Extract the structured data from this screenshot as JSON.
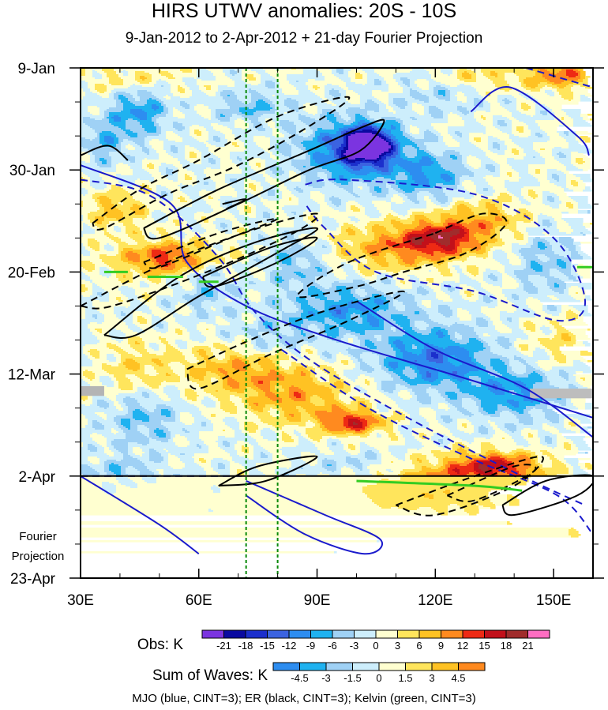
{
  "chart_data": {
    "type": "heatmap",
    "title": "HIRS UTWV anomalies: 20S - 10S",
    "subtitle": "9-Jan-2012 to 2-Apr-2012 + 21-day Fourier Projection",
    "x_axis": {
      "range": [
        30,
        160
      ],
      "ticks": [
        30,
        60,
        90,
        120,
        150
      ],
      "tick_labels": [
        "30E",
        "60E",
        "90E",
        "120E",
        "150E"
      ]
    },
    "y_axis": {
      "range_days": [
        0,
        105
      ],
      "ticks_days": [
        0,
        21,
        42,
        63,
        84,
        105
      ],
      "tick_labels": [
        "9-Jan",
        "30-Jan",
        "20-Feb",
        "12-Mar",
        "2-Apr",
        "23-Apr"
      ],
      "reversed": true
    },
    "forecast_boundary_day": 84,
    "forecast_label": "Fourier Projection",
    "forecast_label_lines": [
      "Fourier",
      "Projection"
    ],
    "reference_longitudes": [
      72,
      80
    ],
    "obs_colorbar": {
      "label": "Obs: K",
      "levels": [
        "-21",
        "-18",
        "-15",
        "-12",
        "-9",
        "-6",
        "-3",
        "0",
        "3",
        "6",
        "9",
        "12",
        "15",
        "18",
        "21"
      ],
      "colors": [
        "#7b34e0",
        "#0a0aa0",
        "#1b2fcc",
        "#3b63e0",
        "#2d8df0",
        "#1fb2f0",
        "#9fd1f5",
        "#cdeefc",
        "#ffffd0",
        "#ffe55c",
        "#ffc223",
        "#ff8a1f",
        "#ee2a14",
        "#c2101a",
        "#a02c2c",
        "#ff6dc2"
      ]
    },
    "waves_colorbar": {
      "label": "Sum of Waves: K",
      "levels": [
        "-4.5",
        "-3",
        "-1.5",
        "0",
        "1.5",
        "3",
        "4.5"
      ],
      "colors": [
        "#2d8df0",
        "#1fb2f0",
        "#9fd1f5",
        "#cdeefc",
        "#ffffd0",
        "#ffe55c",
        "#ffc223",
        "#ff8a1f"
      ]
    },
    "blobs": [
      {
        "lon": 103,
        "day": 16,
        "rx": 6,
        "ry": 3.5,
        "v": -21
      },
      {
        "lon": 99,
        "day": 17,
        "rx": 13,
        "ry": 6.5,
        "v": -13
      },
      {
        "lon": 118,
        "day": 22,
        "rx": 9,
        "ry": 4.5,
        "v": -9
      },
      {
        "lon": 45,
        "day": 9,
        "rx": 7,
        "ry": 5,
        "v": -9
      },
      {
        "lon": 73,
        "day": 8,
        "rx": 9,
        "ry": 3,
        "v": -6
      },
      {
        "lon": 36,
        "day": 15,
        "rx": 6,
        "ry": 5,
        "v": -6
      },
      {
        "lon": 84,
        "day": 40,
        "rx": 9,
        "ry": 5,
        "v": -6
      },
      {
        "lon": 98,
        "day": 50,
        "rx": 16,
        "ry": 5.5,
        "v": -9
      },
      {
        "lon": 120,
        "day": 60,
        "rx": 14,
        "ry": 6,
        "v": -12
      },
      {
        "lon": 140,
        "day": 67,
        "rx": 12,
        "ry": 5,
        "v": -9
      },
      {
        "lon": 62,
        "day": 44,
        "rx": 8,
        "ry": 6,
        "v": -6
      },
      {
        "lon": 46,
        "day": 72,
        "rx": 9,
        "ry": 6,
        "v": -6
      },
      {
        "lon": 148,
        "day": 40,
        "rx": 8,
        "ry": 7,
        "v": -5
      },
      {
        "lon": 78,
        "day": 56,
        "rx": 10,
        "ry": 4,
        "v": -4
      },
      {
        "lon": 122,
        "day": 5,
        "rx": 10,
        "ry": 4,
        "v": -4
      },
      {
        "lon": 40,
        "day": 84,
        "rx": 10,
        "ry": 4,
        "v": -5
      },
      {
        "lon": 100,
        "day": 82,
        "rx": 12,
        "ry": 3,
        "v": -4
      },
      {
        "lon": 122,
        "day": 35,
        "rx": 10,
        "ry": 3.5,
        "v": 14
      },
      {
        "lon": 110,
        "day": 37,
        "rx": 16,
        "ry": 5,
        "v": 9
      },
      {
        "lon": 133,
        "day": 31,
        "rx": 11,
        "ry": 4,
        "v": 7
      },
      {
        "lon": 52,
        "day": 39,
        "rx": 11,
        "ry": 3,
        "v": 9
      },
      {
        "lon": 55,
        "day": 40,
        "rx": 19,
        "ry": 5,
        "v": 5
      },
      {
        "lon": 85,
        "day": 68,
        "rx": 15,
        "ry": 5.5,
        "v": 8
      },
      {
        "lon": 99,
        "day": 73,
        "rx": 8,
        "ry": 2.5,
        "v": 14
      },
      {
        "lon": 70,
        "day": 62,
        "rx": 15,
        "ry": 5,
        "v": 8
      },
      {
        "lon": 39,
        "day": 29,
        "rx": 8,
        "ry": 4,
        "v": 7
      },
      {
        "lon": 44,
        "day": 62,
        "rx": 9,
        "ry": 6,
        "v": 5
      },
      {
        "lon": 152,
        "day": 1,
        "rx": 9,
        "ry": 3.5,
        "v": 11
      },
      {
        "lon": 130,
        "day": 2,
        "rx": 12,
        "ry": 3,
        "v": 5
      },
      {
        "lon": 43,
        "day": 2,
        "rx": 13,
        "ry": 3.5,
        "v": 4
      },
      {
        "lon": 135,
        "day": 82,
        "rx": 12,
        "ry": 3,
        "v": 14
      },
      {
        "lon": 120,
        "day": 86,
        "rx": 20,
        "ry": 5,
        "v": 8
      },
      {
        "lon": 116,
        "day": 88,
        "rx": 12,
        "ry": 3,
        "v": 10
      },
      {
        "lon": 152,
        "day": 56,
        "rx": 9,
        "ry": 5,
        "v": 4
      },
      {
        "lon": 138,
        "day": 92,
        "rx": 12,
        "ry": 6,
        "v": 3
      },
      {
        "lon": 155,
        "day": 96,
        "rx": 7,
        "ry": 6,
        "v": 4
      },
      {
        "lon": 45,
        "day": 96,
        "rx": 12,
        "ry": 5,
        "v": 2
      },
      {
        "lon": 62,
        "day": 88,
        "rx": 7,
        "ry": 3,
        "v": -2
      },
      {
        "lon": 96,
        "day": 96,
        "rx": 10,
        "ry": 6,
        "v": -1
      }
    ],
    "series": [
      {
        "name": "MJO positive",
        "color": "#1a1acc",
        "style": "solid",
        "points": [
          [
            129,
            9
          ],
          [
            139,
            4
          ],
          [
            156,
            14
          ],
          [
            159,
            18
          ]
        ]
      },
      {
        "name": "MJO positive",
        "color": "#1a1acc",
        "style": "solid",
        "points": [
          [
            30,
            20
          ],
          [
            53,
            28
          ],
          [
            57,
            40
          ],
          [
            72,
            49
          ],
          [
            95,
            56
          ],
          [
            128,
            64
          ],
          [
            160,
            72
          ]
        ]
      },
      {
        "name": "MJO positive",
        "color": "#1a1acc",
        "style": "solid",
        "points": [
          [
            100,
            48
          ],
          [
            120,
            58
          ],
          [
            143,
            66
          ],
          [
            160,
            76
          ]
        ]
      },
      {
        "name": "MJO positive",
        "color": "#1a1acc",
        "style": "solid",
        "points": [
          [
            72,
            85
          ],
          [
            92,
            92
          ],
          [
            106,
            97
          ],
          [
            102,
            100
          ],
          [
            87,
            96
          ],
          [
            72,
            88
          ]
        ]
      },
      {
        "name": "MJO positive",
        "color": "#1a1acc",
        "style": "solid",
        "points": [
          [
            30,
            84
          ],
          [
            50,
            94
          ],
          [
            60,
            100
          ]
        ]
      },
      {
        "name": "MJO negative",
        "color": "#1a1acc",
        "style": "dashed",
        "points": [
          [
            30,
            23
          ],
          [
            44,
            25
          ],
          [
            54,
            30
          ],
          [
            66,
            40
          ],
          [
            74,
            50
          ],
          [
            88,
            60
          ],
          [
            113,
            72
          ],
          [
            142,
            84
          ],
          [
            158,
            90
          ]
        ]
      },
      {
        "name": "MJO negative",
        "color": "#1a1acc",
        "style": "dashed",
        "points": [
          [
            87,
            24
          ],
          [
            97,
            23
          ],
          [
            130,
            26
          ],
          [
            150,
            35
          ],
          [
            158,
            48
          ],
          [
            151,
            52
          ],
          [
            130,
            46
          ],
          [
            105,
            42
          ],
          [
            92,
            33
          ],
          [
            87,
            28
          ]
        ]
      },
      {
        "name": "MJO negative",
        "color": "#1a1acc",
        "style": "dashed",
        "points": [
          [
            81,
            58
          ],
          [
            103,
            70
          ],
          [
            128,
            80
          ],
          [
            151,
            88
          ],
          [
            160,
            96
          ]
        ]
      },
      {
        "name": "MJO negative",
        "color": "#1a1acc",
        "style": "dashed",
        "points": [
          [
            30,
            84
          ],
          [
            72,
            84
          ]
        ]
      },
      {
        "name": "MJO negative",
        "color": "#1a1acc",
        "style": "dashed",
        "points": [
          [
            143,
            0
          ],
          [
            160,
            4
          ]
        ]
      },
      {
        "name": "ER positive",
        "color": "#000000",
        "style": "solid",
        "points": [
          [
            30,
            18
          ],
          [
            37,
            16
          ],
          [
            42,
            19
          ]
        ]
      },
      {
        "name": "ER positive",
        "color": "#000000",
        "style": "solid",
        "points": [
          [
            46,
            33
          ],
          [
            65,
            25
          ],
          [
            88,
            17
          ],
          [
            102,
            12
          ],
          [
            107,
            11
          ],
          [
            101,
            17
          ],
          [
            88,
            21
          ],
          [
            70,
            28
          ],
          [
            50,
            35
          ],
          [
            46,
            33
          ]
        ]
      },
      {
        "name": "ER positive",
        "color": "#000000",
        "style": "solid",
        "points": [
          [
            36,
            55
          ],
          [
            55,
            43
          ],
          [
            74,
            36
          ],
          [
            90,
            33
          ],
          [
            80,
            38
          ],
          [
            60,
            47
          ],
          [
            44,
            55
          ],
          [
            36,
            55
          ]
        ]
      },
      {
        "name": "ER positive",
        "color": "#000000",
        "style": "solid",
        "points": [
          [
            61,
            43
          ],
          [
            78,
            37
          ],
          [
            90,
            35
          ],
          [
            80,
            40
          ],
          [
            64,
            45
          ],
          [
            61,
            43
          ]
        ]
      },
      {
        "name": "ER positive",
        "color": "#000000",
        "style": "solid",
        "points": [
          [
            66,
            28
          ],
          [
            72,
            27
          ],
          [
            67,
            29
          ]
        ]
      },
      {
        "name": "ER positive",
        "color": "#000000",
        "style": "solid",
        "points": [
          [
            65,
            86
          ],
          [
            75,
            82
          ],
          [
            90,
            80
          ],
          [
            77,
            85
          ],
          [
            65,
            86
          ]
        ]
      },
      {
        "name": "ER positive",
        "color": "#000000",
        "style": "solid",
        "points": [
          [
            137,
            90
          ],
          [
            148,
            85
          ],
          [
            160,
            84
          ],
          [
            156,
            88
          ],
          [
            140,
            92
          ],
          [
            137,
            90
          ]
        ]
      },
      {
        "name": "ER negative",
        "color": "#000000",
        "style": "dashed",
        "points": [
          [
            33,
            32
          ],
          [
            45,
            25
          ],
          [
            60,
            19
          ],
          [
            80,
            10
          ],
          [
            98,
            6
          ],
          [
            88,
            12
          ],
          [
            70,
            20
          ],
          [
            52,
            26
          ],
          [
            36,
            33
          ],
          [
            33,
            32
          ]
        ]
      },
      {
        "name": "ER negative",
        "color": "#000000",
        "style": "dashed",
        "points": [
          [
            30,
            49
          ],
          [
            52,
            40
          ],
          [
            75,
            33
          ],
          [
            90,
            30
          ],
          [
            84,
            34
          ],
          [
            62,
            42
          ],
          [
            38,
            49
          ],
          [
            30,
            49
          ]
        ]
      },
      {
        "name": "ER negative",
        "color": "#000000",
        "style": "dashed",
        "points": [
          [
            46,
            40
          ],
          [
            65,
            34
          ],
          [
            80,
            31
          ],
          [
            68,
            35
          ],
          [
            50,
            41
          ],
          [
            46,
            40
          ]
        ]
      },
      {
        "name": "ER negative",
        "color": "#000000",
        "style": "dashed",
        "points": [
          [
            120,
            34
          ],
          [
            132,
            30
          ],
          [
            138,
            32
          ],
          [
            128,
            38
          ],
          [
            112,
            42
          ],
          [
            100,
            45
          ],
          [
            85,
            47
          ],
          [
            98,
            40
          ],
          [
            120,
            34
          ]
        ]
      },
      {
        "name": "ER negative",
        "color": "#000000",
        "style": "dashed",
        "points": [
          [
            57,
            62
          ],
          [
            73,
            56
          ],
          [
            92,
            50
          ],
          [
            112,
            46
          ],
          [
            98,
            52
          ],
          [
            78,
            59
          ],
          [
            60,
            66
          ],
          [
            57,
            62
          ]
        ]
      },
      {
        "name": "ER negative",
        "color": "#000000",
        "style": "dashed",
        "points": [
          [
            110,
            90
          ],
          [
            130,
            84
          ],
          [
            147,
            80
          ],
          [
            140,
            86
          ],
          [
            120,
            92
          ],
          [
            110,
            90
          ]
        ]
      },
      {
        "name": "ER negative",
        "color": "#000000",
        "style": "dashed",
        "points": [
          [
            123,
            88
          ],
          [
            140,
            82
          ],
          [
            145,
            83
          ],
          [
            130,
            89
          ],
          [
            123,
            88
          ]
        ]
      },
      {
        "name": "Kelvin",
        "color": "#33cc22",
        "style": "solid",
        "points": [
          [
            36,
            42
          ],
          [
            42,
            42
          ]
        ]
      },
      {
        "name": "Kelvin",
        "color": "#33cc22",
        "style": "solid",
        "points": [
          [
            47,
            43
          ],
          [
            56,
            43
          ]
        ]
      },
      {
        "name": "Kelvin",
        "color": "#33cc22",
        "style": "solid",
        "points": [
          [
            60,
            44
          ],
          [
            65,
            44
          ]
        ]
      },
      {
        "name": "Kelvin",
        "color": "#33cc22",
        "style": "solid",
        "points": [
          [
            100,
            85
          ],
          [
            130,
            86
          ],
          [
            142,
            87
          ]
        ]
      },
      {
        "name": "Kelvin",
        "color": "#33cc22",
        "style": "solid",
        "points": [
          [
            156,
            41
          ],
          [
            160,
            41
          ]
        ]
      }
    ],
    "legend": "MJO (blue, CINT=3); ER (black, CINT=3); Kelvin (green, CINT=3)",
    "colors": {
      "reference_line": "#0a8a0a",
      "background": "#ffffff"
    }
  }
}
